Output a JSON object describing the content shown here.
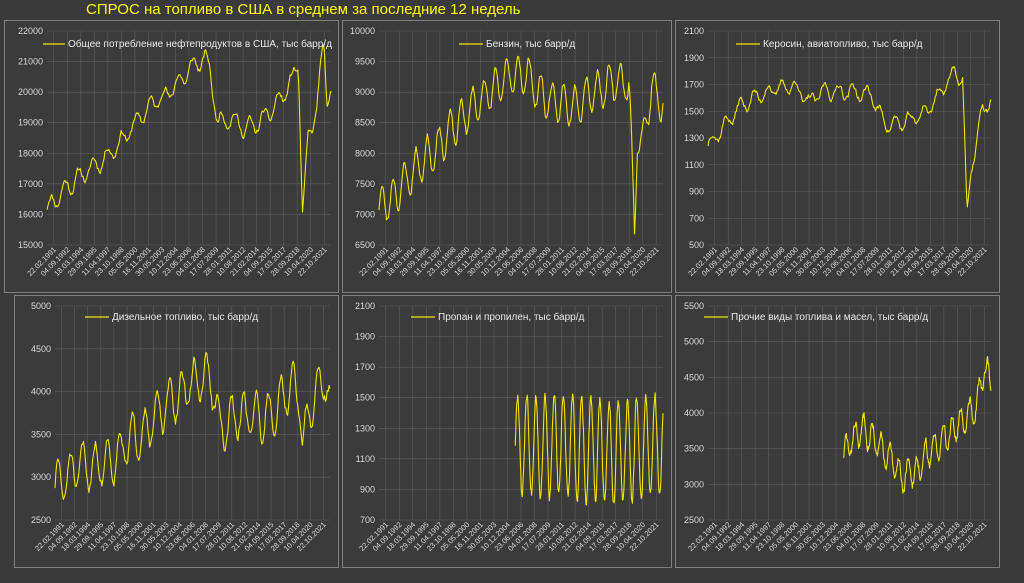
{
  "title": "СПРОС на топливо в США в среднем за последние 12 недель",
  "colors": {
    "background": "#3a3a3a",
    "panel": "#3b3b3b",
    "grid": "#5c5c5c",
    "series": "#f2e600",
    "title": "#ffff00",
    "text": "#d8d8d8"
  },
  "dates": [
    "22.02.1991",
    "04.09.1992",
    "18.03.1994",
    "29.09.1995",
    "11.04.1997",
    "23.10.1998",
    "05.05.2000",
    "16.11.2001",
    "30.05.2003",
    "10.12.2004",
    "23.06.2006",
    "04.01.2008",
    "17.07.2009",
    "28.01.2011",
    "10.08.2012",
    "21.02.2014",
    "04.09.2015",
    "17.03.2017",
    "28.09.2018",
    "10.04.2020",
    "22.10.2021"
  ],
  "chart_data": [
    {
      "id": "total",
      "type": "line",
      "legend": "Общее потребление нефтепродуктов в США, тыс барр/д",
      "yticks": [
        15000,
        16000,
        17000,
        18000,
        19000,
        20000,
        21000,
        22000
      ],
      "ylim": [
        15000,
        22000
      ],
      "start": 0.0,
      "kx": [
        0,
        0.07,
        0.14,
        0.21,
        0.27,
        0.33,
        0.38,
        0.43,
        0.48,
        0.52,
        0.555,
        0.575,
        0.6,
        0.64,
        0.7,
        0.75,
        0.8,
        0.86,
        0.885,
        0.9,
        0.92,
        0.95,
        0.975,
        0.985,
        1.0
      ],
      "kv": [
        16200,
        16900,
        17400,
        17900,
        18500,
        19200,
        19700,
        20000,
        20500,
        20900,
        21100,
        20700,
        19000,
        19200,
        18800,
        19000,
        19500,
        20300,
        21000,
        15900,
        18500,
        19500,
        21700,
        19700,
        20000
      ],
      "amp": 280,
      "period": 0.05,
      "noise": 180,
      "seed": 11
    },
    {
      "id": "gasoline",
      "type": "line",
      "legend": "Бензин, тыс барр/д",
      "yticks": [
        6500,
        7000,
        7500,
        8000,
        8500,
        9000,
        9500,
        10000
      ],
      "ylim": [
        6500,
        10000
      ],
      "start": 0.0,
      "kx": [
        0,
        0.05,
        0.12,
        0.2,
        0.28,
        0.36,
        0.42,
        0.48,
        0.52,
        0.56,
        0.62,
        0.68,
        0.74,
        0.8,
        0.88,
        0.9,
        0.91,
        0.925,
        0.96,
        1.0
      ],
      "kv": [
        7100,
        7300,
        7700,
        8100,
        8500,
        8900,
        9100,
        9300,
        9300,
        9000,
        8800,
        8800,
        9000,
        9100,
        9200,
        6600,
        8400,
        8100,
        9100,
        8800
      ],
      "amp": 320,
      "period": 0.04,
      "noise": 110,
      "seed": 23
    },
    {
      "id": "jet",
      "type": "line",
      "legend": "Керосин, авиатопливо, тыс барр/д",
      "yticks": [
        500,
        700,
        900,
        1100,
        1300,
        1500,
        1700,
        1900,
        2100
      ],
      "ylim": [
        500,
        2100
      ],
      "start": 0.0,
      "kx": [
        0,
        0.06,
        0.12,
        0.2,
        0.3,
        0.36,
        0.4,
        0.5,
        0.58,
        0.62,
        0.66,
        0.72,
        0.78,
        0.84,
        0.87,
        0.9,
        0.915,
        0.93,
        0.95,
        0.97,
        1.0
      ],
      "kv": [
        1250,
        1400,
        1550,
        1640,
        1700,
        1560,
        1650,
        1650,
        1620,
        1420,
        1400,
        1430,
        1520,
        1700,
        1800,
        1750,
        700,
        1050,
        1300,
        1500,
        1600
      ],
      "amp": 55,
      "period": 0.05,
      "noise": 40,
      "seed": 37
    },
    {
      "id": "diesel",
      "type": "line",
      "legend": "Дизельное топливо, тыс барр/д",
      "yticks": [
        2500,
        3000,
        3500,
        4000,
        4500,
        5000
      ],
      "ylim": [
        2500,
        5000
      ],
      "start": 0.0,
      "kx": [
        0,
        0.08,
        0.14,
        0.2,
        0.3,
        0.4,
        0.48,
        0.55,
        0.58,
        0.6,
        0.65,
        0.7,
        0.75,
        0.8,
        0.85,
        0.89,
        0.9,
        0.92,
        0.95,
        0.98,
        1.0
      ],
      "kv": [
        2900,
        3100,
        3150,
        3200,
        3500,
        3800,
        4050,
        4200,
        4000,
        3500,
        3700,
        3750,
        3700,
        3800,
        4050,
        4000,
        3300,
        3700,
        4000,
        4200,
        3750
      ],
      "amp": 260,
      "period": 0.045,
      "noise": 110,
      "seed": 51
    },
    {
      "id": "propane",
      "type": "line",
      "legend": "Пропан и пропилен, тыс барр/д",
      "yticks": [
        700,
        900,
        1100,
        1300,
        1500,
        1700,
        1900,
        2100
      ],
      "ylim": [
        700,
        2100
      ],
      "start": 0.48,
      "kx": [
        0,
        0.2,
        0.4,
        0.6,
        0.8,
        1.0
      ],
      "kv": [
        1200,
        1200,
        1170,
        1150,
        1150,
        1200
      ],
      "amp": 330,
      "period": 0.062,
      "noise": 60,
      "seed": 67
    },
    {
      "id": "other",
      "type": "line",
      "legend": "Прочие виды топлива и масел, тыс барр/д",
      "yticks": [
        2500,
        3000,
        3500,
        4000,
        4500,
        5000,
        5500
      ],
      "ylim": [
        2500,
        5500
      ],
      "start": 0.48,
      "kx": [
        0,
        0.08,
        0.15,
        0.25,
        0.33,
        0.4,
        0.5,
        0.6,
        0.7,
        0.8,
        0.9,
        0.95,
        1.0
      ],
      "kv": [
        3400,
        3700,
        3800,
        3500,
        3300,
        3100,
        3200,
        3500,
        3700,
        3900,
        4100,
        4600,
        4500
      ],
      "amp": 200,
      "period": 0.06,
      "noise": 120,
      "seed": 83
    }
  ]
}
